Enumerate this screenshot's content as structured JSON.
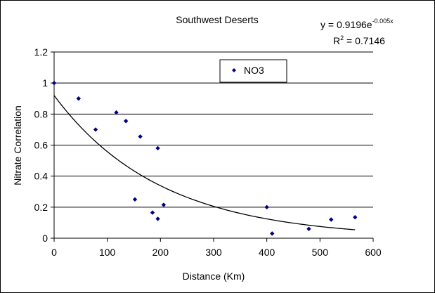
{
  "chart_data": {
    "type": "scatter",
    "title": "Southwest Deserts",
    "xlabel": "Distance (Km)",
    "ylabel": "Nitrate Correlation",
    "xlim": [
      0,
      600
    ],
    "ylim": [
      0,
      1.2
    ],
    "x_ticks": [
      "0",
      "100",
      "200",
      "300",
      "400",
      "500",
      "600"
    ],
    "y_ticks": [
      "0",
      "0.2",
      "0.4",
      "0.6",
      "0.8",
      "1",
      "1.2"
    ],
    "grid": "horizontal",
    "legend_placement": "top-center",
    "series": [
      {
        "name": "NO3",
        "marker": "diamond",
        "color": "#000080",
        "points": [
          {
            "x": 0,
            "y": 1.0
          },
          {
            "x": 46,
            "y": 0.9
          },
          {
            "x": 78,
            "y": 0.7
          },
          {
            "x": 117,
            "y": 0.81
          },
          {
            "x": 135,
            "y": 0.755
          },
          {
            "x": 152,
            "y": 0.25
          },
          {
            "x": 162,
            "y": 0.655
          },
          {
            "x": 185,
            "y": 0.165
          },
          {
            "x": 195,
            "y": 0.125
          },
          {
            "x": 195,
            "y": 0.58
          },
          {
            "x": 206,
            "y": 0.215
          },
          {
            "x": 400,
            "y": 0.2
          },
          {
            "x": 410,
            "y": 0.03
          },
          {
            "x": 479,
            "y": 0.06
          },
          {
            "x": 521,
            "y": 0.12
          },
          {
            "x": 566,
            "y": 0.135
          }
        ]
      }
    ],
    "trendline": {
      "type": "exponential",
      "a": 0.9196,
      "b": -0.005,
      "x_range": [
        0,
        566
      ],
      "equation_prefix": "y = 0.9196e",
      "equation_exponent": "-0.005x",
      "r2_prefix": "R",
      "r2_suffix": " = 0.7146"
    },
    "colors": {
      "marker": "#000080",
      "trendline": "#000000",
      "grid": "#000000",
      "outer_border": "#000000"
    }
  }
}
